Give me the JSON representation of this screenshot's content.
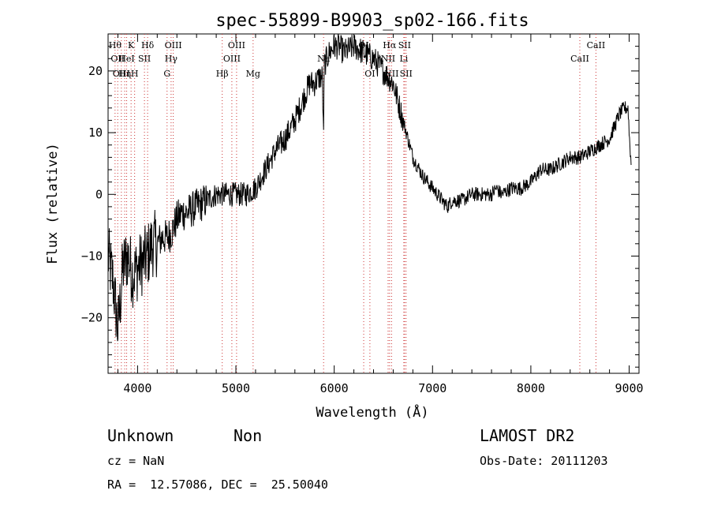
{
  "chart_data": {
    "type": "line",
    "title": "spec-55899-B9903_sp02-166.fits",
    "xlabel": "Wavelength (Å)",
    "ylabel": "Flux (relative)",
    "xlim": [
      3700,
      9100
    ],
    "ylim": [
      -29,
      26
    ],
    "xticks": [
      4000,
      5000,
      6000,
      7000,
      8000,
      9000
    ],
    "yticks": [
      -20,
      -10,
      0,
      10,
      20
    ],
    "grid": false,
    "series": [
      {
        "x": [
          3700,
          3750,
          3800,
          3850,
          3900,
          3950,
          4000,
          4050,
          4100,
          4150,
          4200,
          4250,
          4300,
          4350,
          4400,
          4450,
          4500,
          4600,
          4700,
          4800,
          4900,
          5000,
          5100,
          5200,
          5300,
          5400,
          5500,
          5600,
          5700,
          5750,
          5800,
          5850,
          5880,
          5890,
          5900,
          5950,
          6000,
          6050,
          6100,
          6200,
          6300,
          6400,
          6500,
          6600,
          6650,
          6700,
          6750,
          6800,
          6900,
          7000,
          7100,
          7150,
          7200,
          7300,
          7400,
          7500,
          7600,
          7650,
          7700,
          7800,
          7900,
          8000,
          8100,
          8200,
          8300,
          8400,
          8500,
          8600,
          8700,
          8800,
          8850,
          8900,
          8950,
          8990,
          9000,
          9020
        ],
        "y": [
          -10,
          -14,
          -22,
          -12,
          -10,
          -13,
          -12,
          -11,
          -10,
          -8,
          -8,
          -7,
          -7,
          -6,
          -4,
          -3,
          -3,
          -2,
          -1,
          0,
          0,
          0,
          0,
          1,
          4,
          7,
          9,
          12,
          16,
          18,
          18,
          19,
          19,
          9,
          21,
          23,
          24,
          24,
          23,
          24,
          23,
          22,
          20,
          18,
          15,
          12,
          9,
          6,
          3,
          1,
          -1,
          -2,
          -1,
          -1,
          0,
          0,
          0,
          1,
          0,
          1,
          1,
          2,
          4,
          4,
          5,
          6,
          6,
          7,
          8,
          9,
          11,
          13,
          14,
          14,
          10,
          5
        ]
      }
    ],
    "line_markers": [
      {
        "x": 3771,
        "label": "Hθ",
        "row": 1
      },
      {
        "x": 3798,
        "label": "OII",
        "row": 2
      },
      {
        "x": 3835,
        "label": "OIII",
        "row": 3
      },
      {
        "x": 3869,
        "label": "Hη",
        "row": 3
      },
      {
        "x": 3889,
        "label": "HeI",
        "row": 2
      },
      {
        "x": 3934,
        "label": "K",
        "row": 1
      },
      {
        "x": 3970,
        "label": "H",
        "row": 3
      },
      {
        "x": 4070,
        "label": "SII",
        "row": 2
      },
      {
        "x": 4102,
        "label": "Hδ",
        "row": 1
      },
      {
        "x": 4300,
        "label": "G",
        "row": 3
      },
      {
        "x": 4341,
        "label": "Hγ",
        "row": 2
      },
      {
        "x": 4363,
        "label": "OIII",
        "row": 1
      },
      {
        "x": 4861,
        "label": "Hβ",
        "row": 3
      },
      {
        "x": 4959,
        "label": "OIII",
        "row": 2
      },
      {
        "x": 5007,
        "label": "OIII",
        "row": 1
      },
      {
        "x": 5175,
        "label": "Mg",
        "row": 3
      },
      {
        "x": 5892,
        "label": "Na",
        "row": 2
      },
      {
        "x": 6300,
        "label": "OI",
        "row": 1
      },
      {
        "x": 6363,
        "label": "OI",
        "row": 3
      },
      {
        "x": 6548,
        "label": "NII",
        "row": 2
      },
      {
        "x": 6563,
        "label": "Hα",
        "row": 1
      },
      {
        "x": 6583,
        "label": "NII",
        "row": 3
      },
      {
        "x": 6708,
        "label": "Li",
        "row": 2
      },
      {
        "x": 6716,
        "label": "SII",
        "row": 1
      },
      {
        "x": 6731,
        "label": "SII",
        "row": 3
      },
      {
        "x": 8498,
        "label": "CaII",
        "row": 2
      },
      {
        "x": 8662,
        "label": "CaII",
        "row": 1
      }
    ]
  },
  "info": {
    "object_class": "Unknown",
    "subclass": "Non",
    "survey": "LAMOST DR2",
    "redshift": "cz = NaN",
    "obs_date": "Obs-Date: 20111203",
    "coords": "RA =  12.57086, DEC =  25.50040"
  }
}
